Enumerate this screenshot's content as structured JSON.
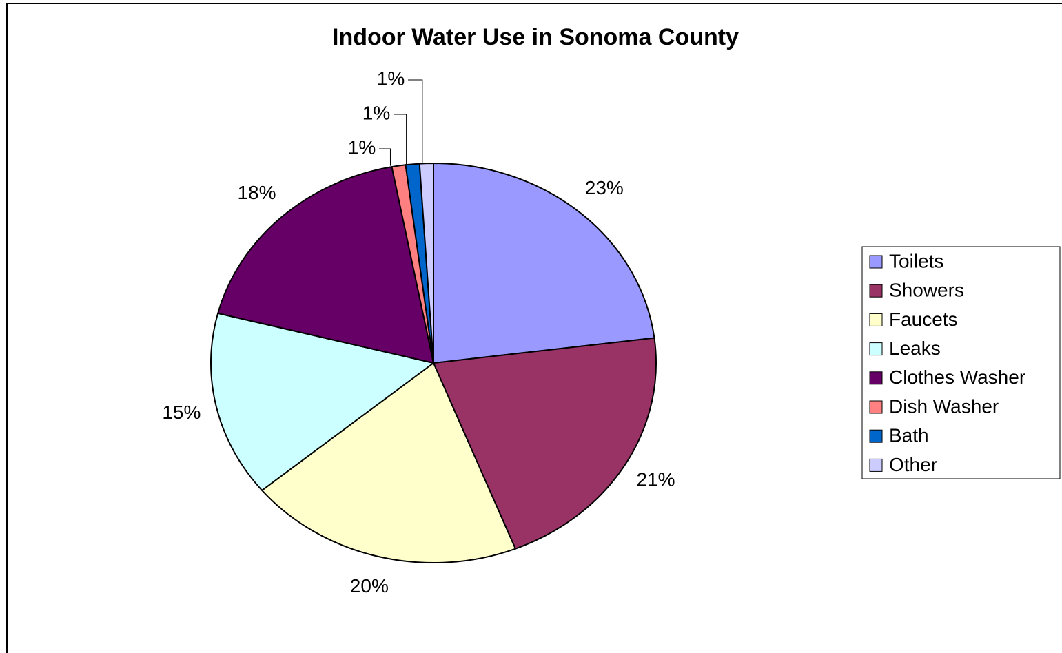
{
  "chart_data": {
    "type": "pie",
    "title": "Indoor Water Use in Sonoma County",
    "categories": [
      "Toilets",
      "Showers",
      "Faucets",
      "Leaks",
      "Clothes Washer",
      "Dish Washer",
      "Bath",
      "Other"
    ],
    "values": [
      23,
      21,
      20,
      15,
      18,
      1,
      1,
      1
    ],
    "value_labels": [
      "23%",
      "21%",
      "20%",
      "15%",
      "18%",
      "1%",
      "1%",
      "1%"
    ],
    "colors": [
      "#9999ff",
      "#993366",
      "#ffffcc",
      "#ccffff",
      "#660066",
      "#ff8080",
      "#0066cc",
      "#ccccff"
    ],
    "legend": "right"
  }
}
